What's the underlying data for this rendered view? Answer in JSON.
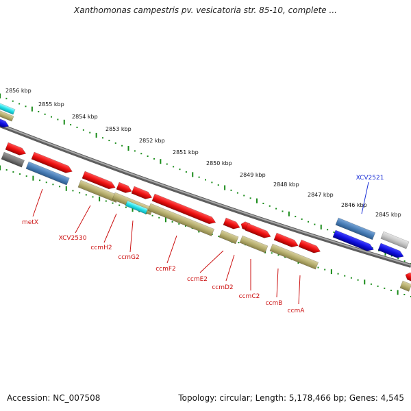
{
  "header": {
    "title": "Xanthomonas campestris pv. vesicatoria str. 85-10, complete ..."
  },
  "footer": {
    "accession": "Accession: NC_007508",
    "summary": "Topology: circular; Length: 5,178,466 bp; Genes: 4,545"
  },
  "ruler": {
    "unit_labels": [
      "2856 kbp",
      "2855 kbp",
      "2854 kbp",
      "2853 kbp",
      "2852 kbp",
      "2851 kbp",
      "2850 kbp",
      "2849 kbp",
      "2848 kbp",
      "2847 kbp",
      "2846 kbp",
      "2845 kbp"
    ]
  },
  "colors": {
    "red": "#ee1111",
    "olive": "#b8b070",
    "steelblue": "#4a7fb8",
    "blue": "#1010e0",
    "gray": "#777777",
    "lightgray": "#c8c8c8",
    "cyan": "#22e0e8",
    "tick_green": "#1a8c1a",
    "backbone": "#808080",
    "label_red": "#cc1111",
    "label_blue": "#1a2fd6"
  },
  "gene_labels": [
    {
      "name": "metX",
      "color": "red"
    },
    {
      "name": "XCV2530",
      "color": "red"
    },
    {
      "name": "ccmH2",
      "color": "red"
    },
    {
      "name": "ccmG2",
      "color": "red"
    },
    {
      "name": "ccmF2",
      "color": "red"
    },
    {
      "name": "ccmE2",
      "color": "red"
    },
    {
      "name": "ccmD2",
      "color": "red"
    },
    {
      "name": "ccmC2",
      "color": "red"
    },
    {
      "name": "ccmB",
      "color": "red"
    },
    {
      "name": "ccmA",
      "color": "red"
    },
    {
      "name": "XCV2521",
      "color": "blue"
    }
  ]
}
